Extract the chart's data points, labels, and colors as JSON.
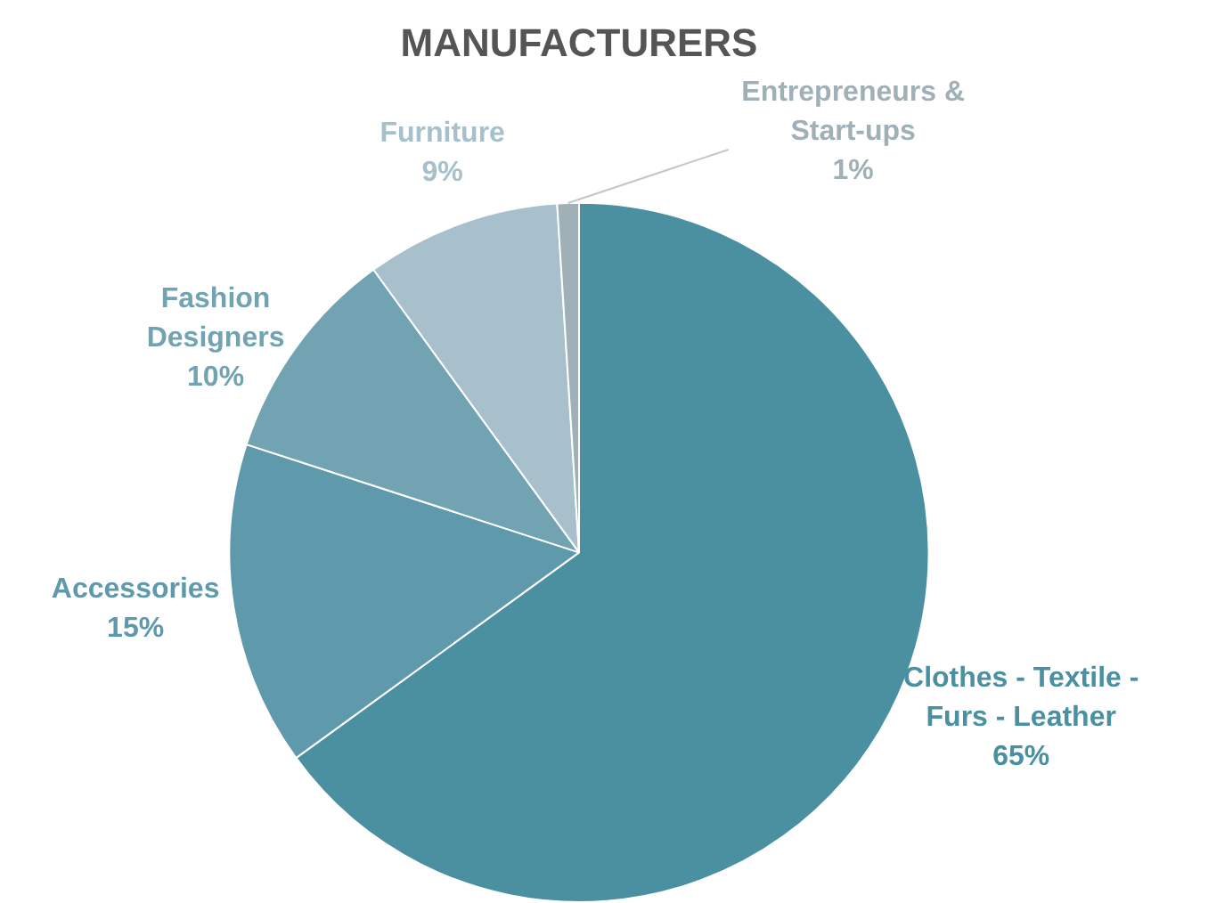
{
  "chart_data": {
    "type": "pie",
    "title": "MANUFACTURERS",
    "categories": [
      "Clothes - Textile - Furs - Leather",
      "Accessories",
      "Fashion Designers",
      "Furniture",
      "Entrepreneurs & Start-ups"
    ],
    "values": [
      65,
      15,
      10,
      9,
      1
    ],
    "value_labels": [
      "65%",
      "15%",
      "10%",
      "9%",
      "1%"
    ],
    "colors": [
      "#4a90a0",
      "#5e9aab",
      "#71a3b3",
      "#a7c0cb",
      "#9fb1b7"
    ],
    "legend": false
  }
}
